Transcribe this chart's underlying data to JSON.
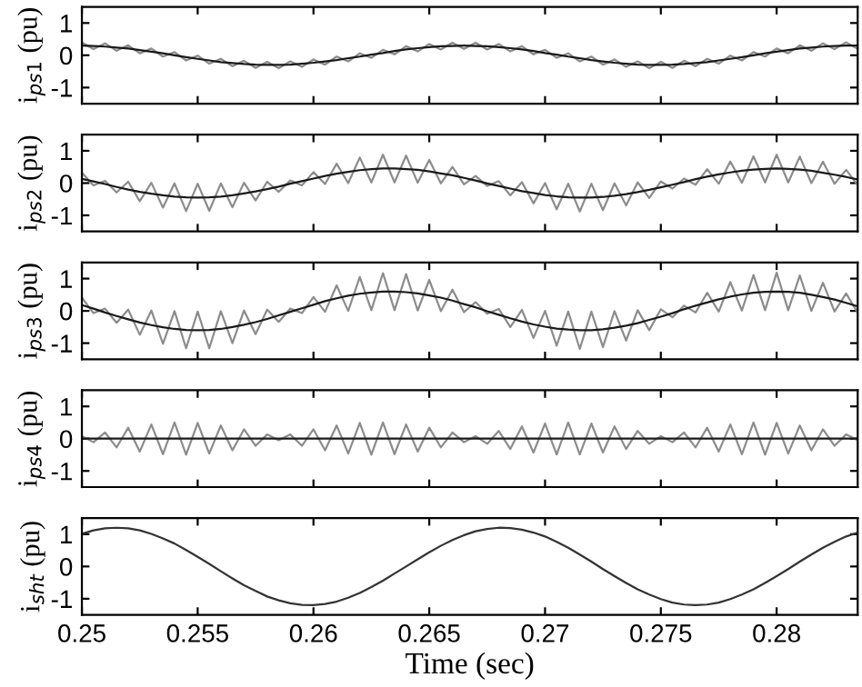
{
  "chart_data": [
    {
      "type": "line",
      "ylabel": "i$_{ps1}$ (pu)",
      "xlim": [
        0.25,
        0.2835
      ],
      "ylim": [
        -1.5,
        1.5
      ],
      "xticks": [
        0.25,
        0.255,
        0.26,
        0.265,
        0.27,
        0.275,
        0.28
      ],
      "yticks": [
        -1,
        0,
        1
      ],
      "tick_labels": "y",
      "grid": false,
      "x": [
        0.25,
        0.2505,
        0.251,
        0.2515,
        0.252,
        0.2525,
        0.253,
        0.2535,
        0.254,
        0.2545,
        0.255,
        0.2555,
        0.256,
        0.2565,
        0.257,
        0.2575,
        0.258,
        0.2585,
        0.259,
        0.2595,
        0.26,
        0.2605,
        0.261,
        0.2615,
        0.262,
        0.2625,
        0.263,
        0.2635,
        0.264,
        0.2645,
        0.265,
        0.2655,
        0.266,
        0.2665,
        0.267,
        0.2675,
        0.268,
        0.2685,
        0.269,
        0.2695,
        0.27,
        0.2705,
        0.271,
        0.2715,
        0.272,
        0.2725,
        0.273,
        0.2735,
        0.274,
        0.2745,
        0.275,
        0.2755,
        0.276,
        0.2765,
        0.277,
        0.2775,
        0.278,
        0.2785,
        0.279,
        0.2795,
        0.28,
        0.2805,
        0.281,
        0.2815,
        0.282,
        0.2825,
        0.283,
        0.2835
      ],
      "series": [
        {
          "color": "#8c8c8c",
          "values": [
            0.4,
            0.19,
            0.37,
            0.14,
            0.31,
            0.06,
            0.21,
            -0.04,
            0.1,
            -0.16,
            -0.01,
            -0.26,
            -0.11,
            -0.34,
            -0.17,
            -0.39,
            -0.2,
            -0.4,
            -0.19,
            -0.36,
            -0.13,
            -0.29,
            -0.04,
            -0.19,
            0.06,
            -0.08,
            0.17,
            0.03,
            0.28,
            0.12,
            0.35,
            0.18,
            0.39,
            0.2,
            0.39,
            0.18,
            0.35,
            0.12,
            0.28,
            0.03,
            0.17,
            -0.08,
            0.06,
            -0.19,
            -0.04,
            -0.29,
            -0.13,
            -0.36,
            -0.19,
            -0.4,
            -0.2,
            -0.39,
            -0.17,
            -0.34,
            -0.11,
            -0.26,
            -0.01,
            -0.16,
            0.1,
            -0.04,
            0.21,
            0.06,
            0.31,
            0.14,
            0.37,
            0.19,
            0.4,
            0.2
          ]
        },
        {
          "color": "#1a1a1a",
          "values": [
            0.3,
            0.29,
            0.27,
            0.24,
            0.21,
            0.16,
            0.11,
            0.06,
            0.0,
            -0.06,
            -0.11,
            -0.16,
            -0.21,
            -0.24,
            -0.27,
            -0.29,
            -0.3,
            -0.3,
            -0.29,
            -0.26,
            -0.23,
            -0.19,
            -0.15,
            -0.09,
            -0.04,
            0.02,
            0.07,
            0.13,
            0.18,
            0.22,
            0.25,
            0.28,
            0.29,
            0.3,
            0.29,
            0.28,
            0.25,
            0.22,
            0.18,
            0.13,
            0.07,
            0.02,
            -0.04,
            -0.09,
            -0.15,
            -0.19,
            -0.23,
            -0.26,
            -0.29,
            -0.3,
            -0.3,
            -0.29,
            -0.27,
            -0.24,
            -0.21,
            -0.16,
            -0.11,
            -0.06,
            0.0,
            0.06,
            0.11,
            0.16,
            0.21,
            0.24,
            0.27,
            0.29,
            0.3,
            0.3
          ]
        }
      ]
    },
    {
      "type": "line",
      "ylabel": "i$_{ps2}$ (pu)",
      "xlim": [
        0.25,
        0.2835
      ],
      "ylim": [
        -1.5,
        1.5
      ],
      "xticks": [
        0.25,
        0.255,
        0.26,
        0.265,
        0.27,
        0.275,
        0.28
      ],
      "yticks": [
        -1,
        0,
        1
      ],
      "tick_labels": "y",
      "grid": false,
      "x": [
        0.25,
        0.2505,
        0.251,
        0.2515,
        0.252,
        0.2525,
        0.253,
        0.2535,
        0.254,
        0.2545,
        0.255,
        0.2555,
        0.256,
        0.2565,
        0.257,
        0.2575,
        0.258,
        0.2585,
        0.259,
        0.2595,
        0.26,
        0.2605,
        0.261,
        0.2615,
        0.262,
        0.2625,
        0.263,
        0.2635,
        0.264,
        0.2645,
        0.265,
        0.2655,
        0.266,
        0.2665,
        0.267,
        0.2675,
        0.268,
        0.2685,
        0.269,
        0.2695,
        0.27,
        0.2705,
        0.271,
        0.2715,
        0.272,
        0.2725,
        0.273,
        0.2735,
        0.274,
        0.2745,
        0.275,
        0.2755,
        0.276,
        0.2765,
        0.277,
        0.2775,
        0.278,
        0.2785,
        0.279,
        0.2795,
        0.28,
        0.2805,
        0.281,
        0.2815,
        0.282,
        0.2825,
        0.283,
        0.2835
      ],
      "series": [
        {
          "color": "#8c8c8c",
          "values": [
            0.32,
            -0.07,
            0.07,
            -0.29,
            0.04,
            -0.56,
            0.01,
            -0.76,
            -0.01,
            -0.87,
            -0.02,
            -0.86,
            -0.01,
            -0.75,
            0.01,
            -0.54,
            0.04,
            -0.27,
            0.08,
            -0.07,
            0.34,
            -0.03,
            0.6,
            0.0,
            0.79,
            0.02,
            0.88,
            0.02,
            0.85,
            0.01,
            0.72,
            -0.01,
            0.5,
            -0.04,
            0.22,
            -0.09,
            0.06,
            -0.38,
            0.03,
            -0.63,
            0.0,
            -0.81,
            -0.02,
            -0.88,
            -0.02,
            -0.84,
            -0.01,
            -0.69,
            0.02,
            -0.46,
            0.05,
            -0.17,
            0.14,
            -0.05,
            0.43,
            -0.02,
            0.67,
            0.01,
            0.83,
            0.02,
            0.88,
            0.02,
            0.82,
            0.0,
            0.66,
            -0.02,
            0.41,
            -0.06
          ]
        },
        {
          "color": "#1a1a1a",
          "values": [
            0.13,
            0.05,
            -0.03,
            -0.12,
            -0.2,
            -0.27,
            -0.33,
            -0.38,
            -0.42,
            -0.44,
            -0.45,
            -0.44,
            -0.42,
            -0.38,
            -0.32,
            -0.26,
            -0.19,
            -0.11,
            -0.02,
            0.06,
            0.14,
            0.22,
            0.29,
            0.35,
            0.4,
            0.43,
            0.45,
            0.45,
            0.43,
            0.41,
            0.36,
            0.3,
            0.24,
            0.16,
            0.08,
            -0.01,
            -0.09,
            -0.17,
            -0.25,
            -0.31,
            -0.37,
            -0.41,
            -0.44,
            -0.45,
            -0.45,
            -0.43,
            -0.39,
            -0.34,
            -0.28,
            -0.21,
            -0.13,
            -0.05,
            0.03,
            0.12,
            0.2,
            0.27,
            0.33,
            0.38,
            0.42,
            0.44,
            0.45,
            0.44,
            0.42,
            0.38,
            0.32,
            0.26,
            0.19,
            0.11
          ]
        }
      ]
    },
    {
      "type": "line",
      "ylabel": "i$_{ps3}$ (pu)",
      "xlim": [
        0.25,
        0.2835
      ],
      "ylim": [
        -1.5,
        1.5
      ],
      "xticks": [
        0.25,
        0.255,
        0.26,
        0.265,
        0.27,
        0.275,
        0.28
      ],
      "yticks": [
        -1,
        0,
        1
      ],
      "tick_labels": "y",
      "grid": false,
      "x": [
        0.25,
        0.2505,
        0.251,
        0.2515,
        0.252,
        0.2525,
        0.253,
        0.2535,
        0.254,
        0.2545,
        0.255,
        0.2555,
        0.256,
        0.2565,
        0.257,
        0.2575,
        0.258,
        0.2585,
        0.259,
        0.2595,
        0.26,
        0.2605,
        0.261,
        0.2615,
        0.262,
        0.2625,
        0.263,
        0.2635,
        0.264,
        0.2645,
        0.265,
        0.2655,
        0.266,
        0.2665,
        0.267,
        0.2675,
        0.268,
        0.2685,
        0.269,
        0.2695,
        0.27,
        0.2705,
        0.271,
        0.2715,
        0.272,
        0.2725,
        0.273,
        0.2735,
        0.274,
        0.2745,
        0.275,
        0.2755,
        0.276,
        0.2765,
        0.277,
        0.2775,
        0.278,
        0.2785,
        0.279,
        0.2795,
        0.28,
        0.2805,
        0.281,
        0.2815,
        0.282,
        0.2825,
        0.283,
        0.2835
      ],
      "series": [
        {
          "color": "#8c8c8c",
          "values": [
            0.41,
            -0.07,
            0.07,
            -0.37,
            0.04,
            -0.74,
            0.01,
            -1.02,
            -0.01,
            -1.16,
            -0.02,
            -1.16,
            -0.01,
            -1.0,
            0.01,
            -0.72,
            0.04,
            -0.34,
            0.07,
            -0.07,
            0.43,
            -0.03,
            0.79,
            0.0,
            1.05,
            0.02,
            1.17,
            0.02,
            1.14,
            0.01,
            0.96,
            -0.01,
            0.66,
            -0.04,
            0.27,
            -0.09,
            0.06,
            -0.5,
            0.03,
            -0.84,
            0.0,
            -1.08,
            -0.02,
            -1.18,
            -0.02,
            -1.12,
            -0.01,
            -0.92,
            0.02,
            -0.6,
            0.05,
            -0.2,
            0.16,
            -0.05,
            0.56,
            -0.02,
            0.89,
            0.01,
            1.11,
            0.02,
            1.18,
            0.02,
            1.1,
            0.0,
            0.87,
            -0.02,
            0.54,
            -0.06
          ]
        },
        {
          "color": "#1a1a1a",
          "values": [
            0.18,
            0.07,
            -0.05,
            -0.16,
            -0.26,
            -0.36,
            -0.44,
            -0.51,
            -0.56,
            -0.59,
            -0.6,
            -0.59,
            -0.56,
            -0.5,
            -0.43,
            -0.35,
            -0.25,
            -0.14,
            -0.03,
            0.08,
            0.19,
            0.3,
            0.39,
            0.47,
            0.53,
            0.57,
            0.6,
            0.6,
            0.58,
            0.54,
            0.48,
            0.41,
            0.32,
            0.21,
            0.11,
            -0.01,
            -0.12,
            -0.23,
            -0.33,
            -0.42,
            -0.49,
            -0.55,
            -0.58,
            -0.6,
            -0.6,
            -0.57,
            -0.52,
            -0.46,
            -0.38,
            -0.28,
            -0.18,
            -0.07,
            0.05,
            0.16,
            0.26,
            0.36,
            0.44,
            0.51,
            0.56,
            0.59,
            0.6,
            0.59,
            0.56,
            0.5,
            0.43,
            0.35,
            0.25,
            0.14
          ]
        }
      ]
    },
    {
      "type": "line",
      "ylabel": "i$_{ps4}$ (pu)",
      "xlim": [
        0.25,
        0.2835
      ],
      "ylim": [
        -1.5,
        1.5
      ],
      "xticks": [
        0.25,
        0.255,
        0.26,
        0.265,
        0.27,
        0.275,
        0.28
      ],
      "yticks": [
        -1,
        0,
        1
      ],
      "tick_labels": "y",
      "grid": false,
      "x": [
        0.25,
        0.2505,
        0.251,
        0.2515,
        0.252,
        0.2525,
        0.253,
        0.2535,
        0.254,
        0.2545,
        0.255,
        0.2555,
        0.256,
        0.2565,
        0.257,
        0.2575,
        0.258,
        0.2585,
        0.259,
        0.2595,
        0.26,
        0.2605,
        0.261,
        0.2615,
        0.262,
        0.2625,
        0.263,
        0.2635,
        0.264,
        0.2645,
        0.265,
        0.2655,
        0.266,
        0.2665,
        0.267,
        0.2675,
        0.268,
        0.2685,
        0.269,
        0.2695,
        0.27,
        0.2705,
        0.271,
        0.2715,
        0.272,
        0.2725,
        0.273,
        0.2735,
        0.274,
        0.2745,
        0.275,
        0.2755,
        0.276,
        0.2765,
        0.277,
        0.2775,
        0.278,
        0.2785,
        0.279,
        0.2795,
        0.28,
        0.2805,
        0.281,
        0.2815,
        0.282,
        0.2825,
        0.283,
        0.2835
      ],
      "series": [
        {
          "color": "#8c8c8c",
          "values": [
            0.08,
            -0.11,
            0.19,
            -0.27,
            0.34,
            -0.4,
            0.44,
            -0.48,
            0.5,
            -0.5,
            0.49,
            -0.46,
            0.41,
            -0.36,
            0.29,
            -0.22,
            0.13,
            -0.05,
            0.13,
            -0.22,
            0.29,
            -0.36,
            0.41,
            -0.46,
            0.49,
            -0.5,
            0.5,
            -0.48,
            0.44,
            -0.4,
            0.34,
            -0.27,
            0.19,
            -0.11,
            0.08,
            -0.16,
            0.24,
            -0.32,
            0.38,
            -0.43,
            0.47,
            -0.49,
            0.5,
            -0.49,
            0.47,
            -0.43,
            0.38,
            -0.32,
            0.24,
            -0.16,
            0.08,
            -0.11,
            0.19,
            -0.27,
            0.34,
            -0.4,
            0.44,
            -0.48,
            0.5,
            -0.5,
            0.49,
            -0.46,
            0.41,
            -0.36,
            0.29,
            -0.22,
            0.13,
            -0.05
          ]
        },
        {
          "color": "#1a1a1a",
          "x": [
            0.25,
            0.2835
          ],
          "values": [
            0,
            0
          ]
        }
      ]
    },
    {
      "type": "line",
      "ylabel": "i$_{sht}$ (pu)",
      "xlabel": "Time (sec)",
      "xlim": [
        0.25,
        0.2835
      ],
      "ylim": [
        -1.5,
        1.5
      ],
      "xticks": [
        0.25,
        0.255,
        0.26,
        0.265,
        0.27,
        0.275,
        0.28
      ],
      "yticks": [
        -1,
        0,
        1
      ],
      "grid": false,
      "x": [
        0.25,
        0.2505,
        0.251,
        0.2515,
        0.252,
        0.2525,
        0.253,
        0.2535,
        0.254,
        0.2545,
        0.255,
        0.2555,
        0.256,
        0.2565,
        0.257,
        0.2575,
        0.258,
        0.2585,
        0.259,
        0.2595,
        0.26,
        0.2605,
        0.261,
        0.2615,
        0.262,
        0.2625,
        0.263,
        0.2635,
        0.264,
        0.2645,
        0.265,
        0.2655,
        0.266,
        0.2665,
        0.267,
        0.2675,
        0.268,
        0.2685,
        0.269,
        0.2695,
        0.27,
        0.2705,
        0.271,
        0.2715,
        0.272,
        0.2725,
        0.273,
        0.2735,
        0.274,
        0.2745,
        0.275,
        0.2755,
        0.276,
        0.2765,
        0.277,
        0.2775,
        0.278,
        0.2785,
        0.279,
        0.2795,
        0.28,
        0.2805,
        0.281,
        0.2815,
        0.282,
        0.2825,
        0.283,
        0.2835
      ],
      "series": [
        {
          "color": "#333333",
          "values": [
            1.01,
            1.12,
            1.18,
            1.2,
            1.18,
            1.12,
            1.01,
            0.87,
            0.71,
            0.51,
            0.3,
            0.08,
            -0.15,
            -0.37,
            -0.58,
            -0.76,
            -0.93,
            -1.05,
            -1.14,
            -1.19,
            -1.2,
            -1.16,
            -1.09,
            -0.97,
            -0.82,
            -0.64,
            -0.44,
            -0.22,
            0.0,
            0.22,
            0.44,
            0.64,
            0.82,
            0.97,
            1.09,
            1.16,
            1.2,
            1.19,
            1.14,
            1.05,
            0.93,
            0.76,
            0.58,
            0.37,
            0.15,
            -0.08,
            -0.3,
            -0.51,
            -0.71,
            -0.87,
            -1.01,
            -1.12,
            -1.18,
            -1.2,
            -1.18,
            -1.12,
            -1.01,
            -0.87,
            -0.71,
            -0.51,
            -0.3,
            -0.08,
            0.15,
            0.37,
            0.58,
            0.76,
            0.93,
            1.05
          ]
        }
      ]
    }
  ]
}
